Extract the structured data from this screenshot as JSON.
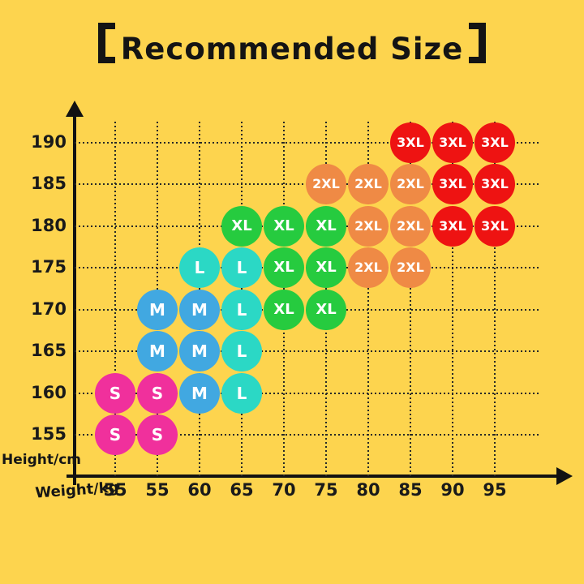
{
  "chart_data": {
    "type": "scatter",
    "title": "【Recommended Size】",
    "xlabel": "Weight/kg",
    "ylabel": "Height/cm",
    "x_ticks": [
      "55",
      "55",
      "60",
      "65",
      "70",
      "75",
      "80",
      "85",
      "90",
      "95"
    ],
    "y_ticks": [
      "190",
      "185",
      "180",
      "175",
      "170",
      "165",
      "160",
      "155"
    ],
    "grid": "dotted",
    "legend": "none",
    "size_colors": {
      "S": "#f0309c",
      "M": "#41a8e1",
      "L": "#2bd8c5",
      "XL": "#26cb3f",
      "2XL": "#ef8a45",
      "3XL": "#ee1312"
    },
    "background_color": "#fdd44e",
    "points": [
      {
        "height": "190",
        "weight": "85",
        "size": "3XL",
        "xi": 7,
        "yi": 0
      },
      {
        "height": "190",
        "weight": "90",
        "size": "3XL",
        "xi": 8,
        "yi": 0
      },
      {
        "height": "190",
        "weight": "95",
        "size": "3XL",
        "xi": 9,
        "yi": 0
      },
      {
        "height": "185",
        "weight": "75",
        "size": "2XL",
        "xi": 5,
        "yi": 1
      },
      {
        "height": "185",
        "weight": "80",
        "size": "2XL",
        "xi": 6,
        "yi": 1
      },
      {
        "height": "185",
        "weight": "85",
        "size": "2XL",
        "xi": 7,
        "yi": 1
      },
      {
        "height": "185",
        "weight": "90",
        "size": "3XL",
        "xi": 8,
        "yi": 1
      },
      {
        "height": "185",
        "weight": "95",
        "size": "3XL",
        "xi": 9,
        "yi": 1
      },
      {
        "height": "180",
        "weight": "65",
        "size": "XL",
        "xi": 3,
        "yi": 2
      },
      {
        "height": "180",
        "weight": "70",
        "size": "XL",
        "xi": 4,
        "yi": 2
      },
      {
        "height": "180",
        "weight": "75",
        "size": "XL",
        "xi": 5,
        "yi": 2
      },
      {
        "height": "180",
        "weight": "80",
        "size": "2XL",
        "xi": 6,
        "yi": 2
      },
      {
        "height": "180",
        "weight": "85",
        "size": "2XL",
        "xi": 7,
        "yi": 2
      },
      {
        "height": "180",
        "weight": "90",
        "size": "3XL",
        "xi": 8,
        "yi": 2
      },
      {
        "height": "180",
        "weight": "95",
        "size": "3XL",
        "xi": 9,
        "yi": 2
      },
      {
        "height": "175",
        "weight": "60",
        "size": "L",
        "xi": 2,
        "yi": 3
      },
      {
        "height": "175",
        "weight": "65",
        "size": "L",
        "xi": 3,
        "yi": 3
      },
      {
        "height": "175",
        "weight": "70",
        "size": "XL",
        "xi": 4,
        "yi": 3
      },
      {
        "height": "175",
        "weight": "75",
        "size": "XL",
        "xi": 5,
        "yi": 3
      },
      {
        "height": "175",
        "weight": "80",
        "size": "2XL",
        "xi": 6,
        "yi": 3
      },
      {
        "height": "175",
        "weight": "85",
        "size": "2XL",
        "xi": 7,
        "yi": 3
      },
      {
        "height": "170",
        "weight": "55",
        "size": "M",
        "xi": 1,
        "yi": 4
      },
      {
        "height": "170",
        "weight": "60",
        "size": "M",
        "xi": 2,
        "yi": 4
      },
      {
        "height": "170",
        "weight": "65",
        "size": "L",
        "xi": 3,
        "yi": 4
      },
      {
        "height": "170",
        "weight": "70",
        "size": "XL",
        "xi": 4,
        "yi": 4
      },
      {
        "height": "170",
        "weight": "75",
        "size": "XL",
        "xi": 5,
        "yi": 4
      },
      {
        "height": "165",
        "weight": "55",
        "size": "M",
        "xi": 1,
        "yi": 5
      },
      {
        "height": "165",
        "weight": "60",
        "size": "M",
        "xi": 2,
        "yi": 5
      },
      {
        "height": "165",
        "weight": "65",
        "size": "L",
        "xi": 3,
        "yi": 5
      },
      {
        "height": "160",
        "weight": "55",
        "size": "S",
        "xi": 0,
        "yi": 6
      },
      {
        "height": "160",
        "weight": "55",
        "size": "S",
        "xi": 1,
        "yi": 6
      },
      {
        "height": "160",
        "weight": "60",
        "size": "M",
        "xi": 2,
        "yi": 6
      },
      {
        "height": "160",
        "weight": "65",
        "size": "L",
        "xi": 3,
        "yi": 6
      },
      {
        "height": "155",
        "weight": "55",
        "size": "S",
        "xi": 0,
        "yi": 7
      },
      {
        "height": "155",
        "weight": "55",
        "size": "S",
        "xi": 1,
        "yi": 7
      }
    ]
  }
}
